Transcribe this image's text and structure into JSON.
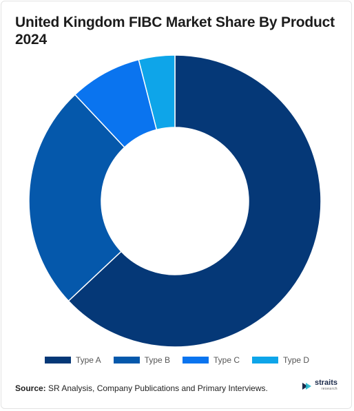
{
  "title": "United Kingdom FIBC Market Share By Product 2024",
  "source_label": "Source:",
  "source_text": " SR Analysis, Company Publications and Primary Interviews.",
  "logo": {
    "main": "straits",
    "sub": "research",
    "icon": "straits-logo-icon"
  },
  "chart_data": {
    "type": "pie",
    "donut": true,
    "title": "United Kingdom FIBC Market Share By Product 2024",
    "categories": [
      "Type A",
      "Type B",
      "Type C",
      "Type D"
    ],
    "values": [
      63,
      25,
      8,
      4
    ],
    "colors": [
      "#053877",
      "#0558ab",
      "#0a74ef",
      "#0ea5e9"
    ],
    "legend_position": "bottom"
  }
}
